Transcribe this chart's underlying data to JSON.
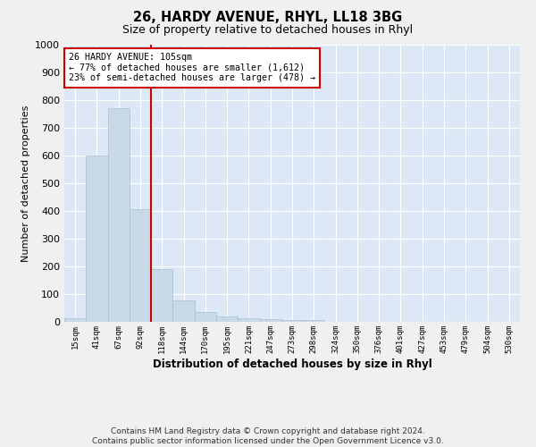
{
  "title1": "26, HARDY AVENUE, RHYL, LL18 3BG",
  "title2": "Size of property relative to detached houses in Rhyl",
  "xlabel": "Distribution of detached houses by size in Rhyl",
  "ylabel": "Number of detached properties",
  "footnote": "Contains HM Land Registry data © Crown copyright and database right 2024.\nContains public sector information licensed under the Open Government Licence v3.0.",
  "categories": [
    "15sqm",
    "41sqm",
    "67sqm",
    "92sqm",
    "118sqm",
    "144sqm",
    "170sqm",
    "195sqm",
    "221sqm",
    "247sqm",
    "273sqm",
    "298sqm",
    "324sqm",
    "350sqm",
    "376sqm",
    "401sqm",
    "427sqm",
    "453sqm",
    "479sqm",
    "504sqm",
    "530sqm"
  ],
  "values": [
    13,
    600,
    770,
    405,
    190,
    77,
    37,
    18,
    12,
    11,
    8,
    5,
    0,
    0,
    0,
    0,
    0,
    0,
    0,
    0,
    0
  ],
  "bar_color": "#c9d9e8",
  "bar_edge_color": "#a8c0d4",
  "vline_x": 3.5,
  "vline_color": "#cc0000",
  "annotation_text": "26 HARDY AVENUE: 105sqm\n← 77% of detached houses are smaller (1,612)\n23% of semi-detached houses are larger (478) →",
  "annotation_box_color": "#ffffff",
  "annotation_box_edge": "#cc0000",
  "ylim": [
    0,
    1000
  ],
  "yticks": [
    0,
    100,
    200,
    300,
    400,
    500,
    600,
    700,
    800,
    900,
    1000
  ],
  "plot_background": "#dce8f5",
  "grid_color": "#ffffff",
  "fig_background": "#f0f0f0"
}
